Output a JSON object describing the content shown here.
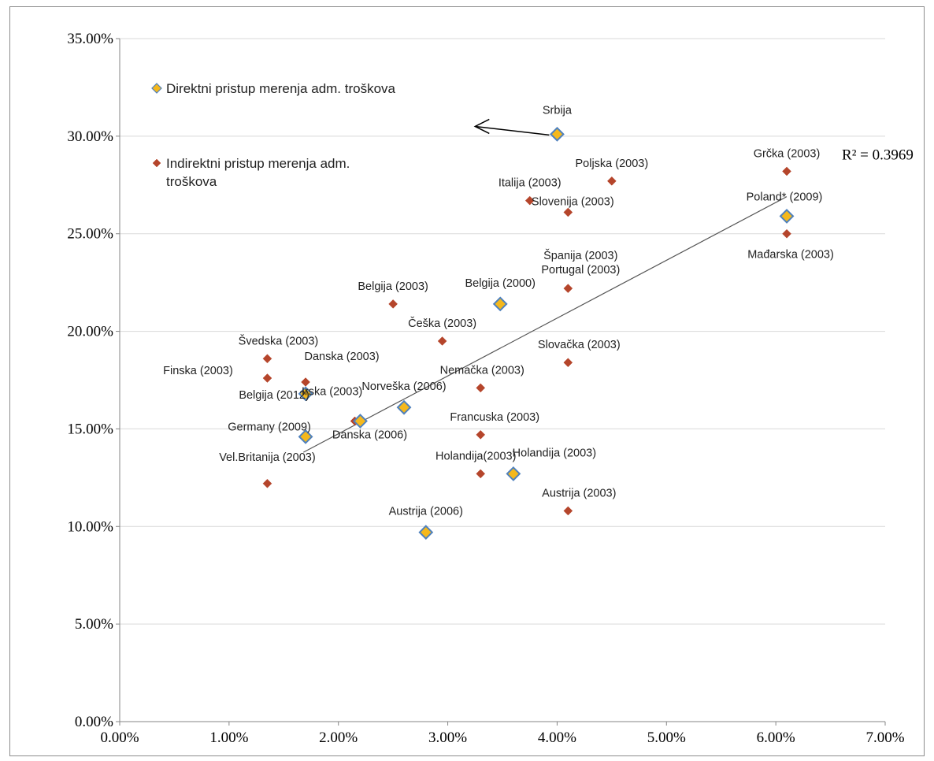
{
  "chart_data": {
    "type": "scatter",
    "xlim": [
      0,
      0.07
    ],
    "ylim": [
      0,
      0.35
    ],
    "x_ticks": [
      "0.00%",
      "1.00%",
      "2.00%",
      "3.00%",
      "4.00%",
      "5.00%",
      "6.00%",
      "7.00%"
    ],
    "y_ticks": [
      "0.00%",
      "5.00%",
      "10.00%",
      "15.00%",
      "20.00%",
      "25.00%",
      "30.00%",
      "35.00%"
    ],
    "grid": "horizontal",
    "legend_position": "top-left",
    "colors": {
      "direct": "#f5b81c",
      "direct_edge": "#4f81bd",
      "indirect": "#b5452b",
      "trend": "#555555",
      "grid": "#d9d9d9",
      "arrow": "#000000"
    },
    "series": [
      {
        "name": "Direktni pristup merenja adm. troškova",
        "marker": "diamond",
        "points": [
          {
            "x": 0.04,
            "y": 0.301,
            "label": "Srbija"
          },
          {
            "x": 0.061,
            "y": 0.259,
            "label": "Poland* (2009)"
          },
          {
            "x": 0.0348,
            "y": 0.214,
            "label": "Belgija (2000)"
          },
          {
            "x": 0.017,
            "y": 0.168,
            "label": "Belgija (2012)"
          },
          {
            "x": 0.026,
            "y": 0.161,
            "label": "Norveška (2006)"
          },
          {
            "x": 0.022,
            "y": 0.154,
            "label": "Danska  (2006)"
          },
          {
            "x": 0.017,
            "y": 0.146,
            "label": "Germany (2009)"
          },
          {
            "x": 0.036,
            "y": 0.127,
            "label": "Holandija (2003)"
          },
          {
            "x": 0.028,
            "y": 0.097,
            "label": "Austrija (2006)"
          }
        ]
      },
      {
        "name": "Indirektni pristup merenja adm. troškova",
        "marker": "diamond",
        "points": [
          {
            "x": 0.061,
            "y": 0.282,
            "label": "Grčka (2003)"
          },
          {
            "x": 0.045,
            "y": 0.277,
            "label": "Poljska (2003)"
          },
          {
            "x": 0.0375,
            "y": 0.267,
            "label": "Italija (2003)"
          },
          {
            "x": 0.041,
            "y": 0.261,
            "label": "Slovenija (2003)"
          },
          {
            "x": 0.061,
            "y": 0.25,
            "label": "Mađarska (2003)"
          },
          {
            "x": 0.041,
            "y": 0.222,
            "label": "Španija (2003)\nPortugal (2003)"
          },
          {
            "x": 0.025,
            "y": 0.214,
            "label": "Belgija (2003)"
          },
          {
            "x": 0.0295,
            "y": 0.195,
            "label": "Češka (2003)"
          },
          {
            "x": 0.0135,
            "y": 0.186,
            "label": "Švedska (2003)"
          },
          {
            "x": 0.041,
            "y": 0.184,
            "label": "Slovačka (2003)"
          },
          {
            "x": 0.0135,
            "y": 0.176,
            "label": "Finska (2003)"
          },
          {
            "x": 0.017,
            "y": 0.174,
            "label": "Danska (2003)"
          },
          {
            "x": 0.033,
            "y": 0.171,
            "label": "Nemačka (2003)"
          },
          {
            "x": 0.0215,
            "y": 0.154,
            "label": "Irska (2003)"
          },
          {
            "x": 0.033,
            "y": 0.147,
            "label": "Francuska (2003)"
          },
          {
            "x": 0.033,
            "y": 0.127,
            "label": "Holandija(2003)"
          },
          {
            "x": 0.0135,
            "y": 0.122,
            "label": "Vel.Britanija (2003)"
          },
          {
            "x": 0.041,
            "y": 0.108,
            "label": "Austrija (2003)"
          }
        ]
      }
    ],
    "trendline": {
      "x": [
        0.0168,
        0.061
      ],
      "y": [
        0.138,
        0.269
      ]
    },
    "annotations": {
      "r_squared": "R² = 0.3969",
      "arrow": {
        "from": {
          "x": 0.04,
          "y": 0.301
        },
        "to": {
          "x": 0.0325,
          "y": 0.305
        }
      }
    }
  }
}
